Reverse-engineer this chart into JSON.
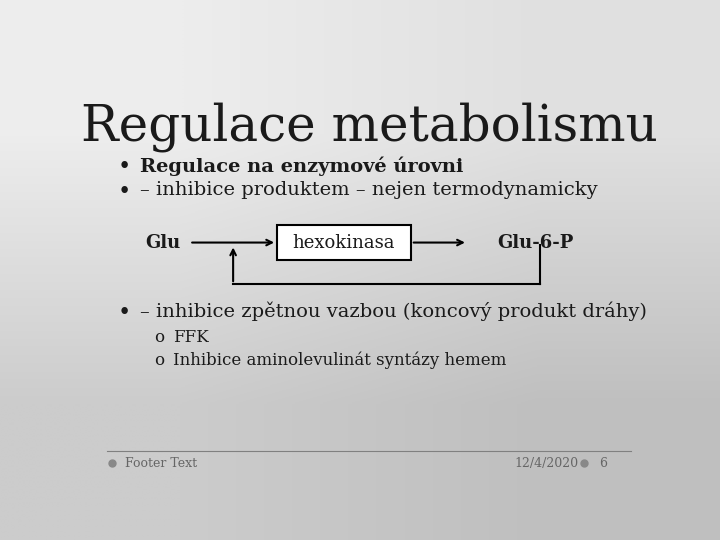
{
  "title": "Regulace metabolismu",
  "bullet1": "Regulace na enzymové úrovni",
  "bullet2": "– inhibice produktem – nejen termodynamicky",
  "bullet3": "– inhibice zpětnou vazbou (koncový produkt dráhy)",
  "sub1": "FFK",
  "sub2": "Inhibice aminolevulinát syntázy hemem",
  "footer_left": "Footer Text",
  "footer_right": "12/4/2020",
  "footer_page": "6",
  "diagram_glu": "Glu",
  "diagram_enzyme": "hexokinasa",
  "diagram_product": "Glu-6-P",
  "title_fontsize": 36,
  "bullet_fontsize": 14,
  "sub_fontsize": 12,
  "diagram_fontsize": 13,
  "footer_fontsize": 9,
  "text_color": "#1a1a1a"
}
